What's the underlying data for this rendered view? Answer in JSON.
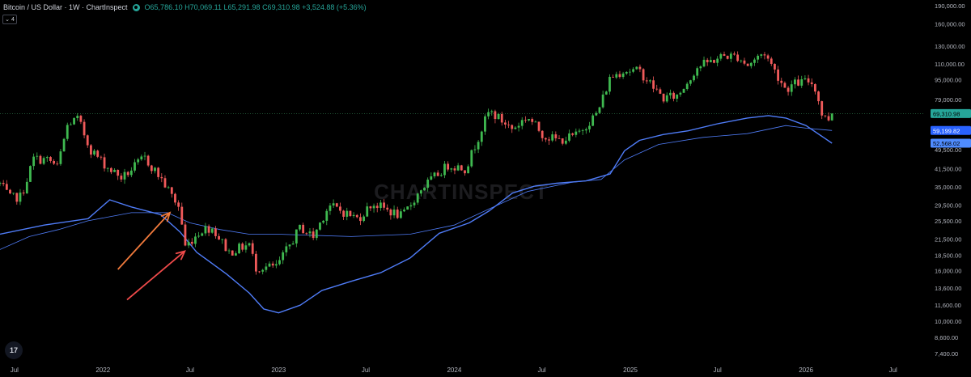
{
  "header": {
    "title": "Bitcoin / US Dollar · 1W · ChartInspect",
    "open": "O65,786.10",
    "high": "H70,069.11",
    "low": "L65,291.98",
    "close": "C69,310.98",
    "change": "+3,524.88 (+5.36%)"
  },
  "indicator_count": "4",
  "watermark": "CHARTINSPECT",
  "tv_logo": "17",
  "colors": {
    "background": "#000000",
    "up": "#26a69a",
    "candle_up": "#3fb950",
    "candle_down": "#f05a5a",
    "band": "#4f7cf7",
    "arrow_orange": "#f07a3c",
    "arrow_red": "#ef4a4a",
    "price_line": "#2a6e44"
  },
  "chart_data": {
    "type": "candlestick",
    "y_scale": "log",
    "ylim": [
      6800,
      200000
    ],
    "x_range": [
      "2021-06-01",
      "2026-08-31"
    ],
    "x_ticks": [
      {
        "date": "2021-07-01",
        "label": "Jul"
      },
      {
        "date": "2022-01-01",
        "label": "2022"
      },
      {
        "date": "2022-07-01",
        "label": "Jul"
      },
      {
        "date": "2023-01-01",
        "label": "2023"
      },
      {
        "date": "2023-07-01",
        "label": "Jul"
      },
      {
        "date": "2024-01-01",
        "label": "2024"
      },
      {
        "date": "2024-07-01",
        "label": "Jul"
      },
      {
        "date": "2025-01-01",
        "label": "2025"
      },
      {
        "date": "2025-07-01",
        "label": "Jul"
      },
      {
        "date": "2026-01-01",
        "label": "2026"
      },
      {
        "date": "2026-07-01",
        "label": "Jul"
      }
    ],
    "y_ticks": [
      {
        "value": 190000,
        "label": "190,000.00"
      },
      {
        "value": 160000,
        "label": "160,000.00"
      },
      {
        "value": 130000,
        "label": "130,000.00"
      },
      {
        "value": 110000,
        "label": "110,000.00"
      },
      {
        "value": 95000,
        "label": "95,000.00"
      },
      {
        "value": 79000,
        "label": "79,000.00"
      },
      {
        "value": 49500,
        "label": "49,500.00"
      },
      {
        "value": 41500,
        "label": "41,500.00"
      },
      {
        "value": 35000,
        "label": "35,000.00"
      },
      {
        "value": 29500,
        "label": "29,500.00"
      },
      {
        "value": 25500,
        "label": "25,500.00"
      },
      {
        "value": 21500,
        "label": "21,500.00"
      },
      {
        "value": 18500,
        "label": "18,500.00"
      },
      {
        "value": 16000,
        "label": "16,000.00"
      },
      {
        "value": 13600,
        "label": "13,600.00"
      },
      {
        "value": 11600,
        "label": "11,600.00"
      },
      {
        "value": 10000,
        "label": "10,000.00"
      },
      {
        "value": 8600,
        "label": "8,600.00"
      },
      {
        "value": 7400,
        "label": "7,400.00"
      }
    ],
    "price_labels": [
      {
        "value": 69310.98,
        "label": "69,310.98",
        "color": "#26a69a",
        "text_color": "#000000"
      },
      {
        "value": 59199.82,
        "label": "59,199.82",
        "color": "#2962ff",
        "text_color": "#ffffff"
      },
      {
        "value": 52568.02,
        "label": "52,568.02",
        "color": "#4f8cff",
        "text_color": "#000000"
      }
    ],
    "price_keyframes": [
      [
        "2021-06-01",
        36000
      ],
      [
        "2021-06-22",
        31500
      ],
      [
        "2021-07-15",
        32000
      ],
      [
        "2021-08-10",
        45500
      ],
      [
        "2021-09-10",
        45000
      ],
      [
        "2021-09-28",
        42000
      ],
      [
        "2021-10-20",
        63000
      ],
      [
        "2021-11-10",
        66000
      ],
      [
        "2021-12-05",
        50000
      ],
      [
        "2022-01-10",
        42000
      ],
      [
        "2022-02-10",
        38000
      ],
      [
        "2022-03-28",
        46000
      ],
      [
        "2022-05-01",
        38000
      ],
      [
        "2022-06-10",
        28500
      ],
      [
        "2022-06-20",
        20000
      ],
      [
        "2022-07-25",
        23500
      ],
      [
        "2022-08-15",
        24000
      ],
      [
        "2022-09-20",
        19000
      ],
      [
        "2022-11-01",
        20500
      ],
      [
        "2022-11-14",
        16500
      ],
      [
        "2022-12-28",
        16600
      ],
      [
        "2023-02-15",
        24000
      ],
      [
        "2023-03-14",
        22000
      ],
      [
        "2023-04-15",
        29500
      ],
      [
        "2023-06-15",
        26000
      ],
      [
        "2023-07-15",
        30000
      ],
      [
        "2023-09-15",
        26500
      ],
      [
        "2023-10-25",
        34500
      ],
      [
        "2023-12-20",
        43000
      ],
      [
        "2024-01-25",
        41500
      ],
      [
        "2024-02-28",
        61000
      ],
      [
        "2024-03-14",
        71000
      ],
      [
        "2024-05-01",
        60000
      ],
      [
        "2024-06-01",
        67500
      ],
      [
        "2024-07-05",
        56500
      ],
      [
        "2024-08-05",
        54000
      ],
      [
        "2024-09-10",
        56500
      ],
      [
        "2024-10-25",
        70000
      ],
      [
        "2024-11-20",
        97000
      ],
      [
        "2024-12-17",
        104000
      ],
      [
        "2025-01-20",
        103000
      ],
      [
        "2025-03-10",
        80000
      ],
      [
        "2025-04-10",
        82000
      ],
      [
        "2025-05-20",
        107000
      ],
      [
        "2025-07-14",
        119000
      ],
      [
        "2025-08-14",
        118000
      ],
      [
        "2025-09-01",
        108500
      ],
      [
        "2025-10-06",
        123000
      ],
      [
        "2025-10-20",
        110000
      ],
      [
        "2025-11-20",
        87000
      ],
      [
        "2025-12-10",
        92000
      ],
      [
        "2026-01-10",
        94000
      ],
      [
        "2026-01-20",
        88000
      ],
      [
        "2026-02-05",
        67000
      ],
      [
        "2026-02-16",
        65786
      ],
      [
        "2026-02-24",
        69311
      ]
    ],
    "series": [
      {
        "kind": "band_lower_thick",
        "points": [
          [
            "2021-06-01",
            22500
          ],
          [
            "2021-09-01",
            24500
          ],
          [
            "2021-12-01",
            26000
          ],
          [
            "2022-01-15",
            31000
          ],
          [
            "2022-03-01",
            29000
          ],
          [
            "2022-05-01",
            27000
          ],
          [
            "2022-06-10",
            23000
          ],
          [
            "2022-07-15",
            19000
          ],
          [
            "2022-09-15",
            15500
          ],
          [
            "2022-11-01",
            13000
          ],
          [
            "2022-12-01",
            11200
          ],
          [
            "2023-01-01",
            10800
          ],
          [
            "2023-02-15",
            11600
          ],
          [
            "2023-04-01",
            13300
          ],
          [
            "2023-06-01",
            14500
          ],
          [
            "2023-08-01",
            15700
          ],
          [
            "2023-10-01",
            18000
          ],
          [
            "2023-12-01",
            22700
          ],
          [
            "2024-02-01",
            25000
          ],
          [
            "2024-03-14",
            28000
          ],
          [
            "2024-05-01",
            33000
          ],
          [
            "2024-06-15",
            35200
          ],
          [
            "2024-08-01",
            36200
          ],
          [
            "2024-10-01",
            37000
          ],
          [
            "2024-11-20",
            39500
          ],
          [
            "2024-12-20",
            49000
          ],
          [
            "2025-01-20",
            54000
          ],
          [
            "2025-03-10",
            57000
          ],
          [
            "2025-05-01",
            59000
          ],
          [
            "2025-07-01",
            63000
          ],
          [
            "2025-09-01",
            66500
          ],
          [
            "2025-10-15",
            68000
          ],
          [
            "2025-11-20",
            66500
          ],
          [
            "2026-01-01",
            62000
          ],
          [
            "2026-02-24",
            52568
          ]
        ]
      },
      {
        "kind": "band_mid_thin",
        "points": [
          [
            "2021-06-01",
            19500
          ],
          [
            "2021-08-01",
            22000
          ],
          [
            "2021-10-01",
            23500
          ],
          [
            "2021-12-01",
            25500
          ],
          [
            "2022-03-01",
            27500
          ],
          [
            "2022-05-15",
            27500
          ],
          [
            "2022-07-01",
            25000
          ],
          [
            "2022-09-01",
            23500
          ],
          [
            "2022-11-01",
            22500
          ],
          [
            "2023-01-01",
            22500
          ],
          [
            "2023-06-01",
            22000
          ],
          [
            "2023-10-01",
            22500
          ],
          [
            "2024-01-01",
            24500
          ],
          [
            "2024-03-14",
            28500
          ],
          [
            "2024-06-01",
            33500
          ],
          [
            "2024-09-01",
            36500
          ],
          [
            "2024-11-01",
            37500
          ],
          [
            "2024-12-20",
            45000
          ],
          [
            "2025-03-01",
            52000
          ],
          [
            "2025-06-01",
            55500
          ],
          [
            "2025-09-01",
            57500
          ],
          [
            "2025-11-20",
            62000
          ],
          [
            "2026-01-01",
            60500
          ],
          [
            "2026-02-24",
            59200
          ]
        ]
      }
    ],
    "annotations": [
      {
        "type": "arrow",
        "color": "orange",
        "from": [
          "2022-02-01",
          16200
        ],
        "to": [
          "2022-05-20",
          27500
        ]
      },
      {
        "type": "arrow",
        "color": "red",
        "from": [
          "2022-02-20",
          12200
        ],
        "to": [
          "2022-06-20",
          19200
        ]
      }
    ]
  }
}
